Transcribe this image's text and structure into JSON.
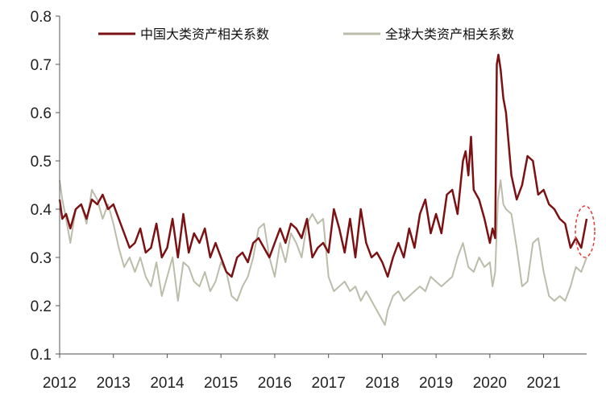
{
  "chart_data": {
    "type": "line",
    "xlabel": "",
    "ylabel": "",
    "xlim": [
      2012,
      2021.95
    ],
    "ylim": [
      0.1,
      0.8
    ],
    "y_ticks": [
      "0.1",
      "0.2",
      "0.3",
      "0.4",
      "0.5",
      "0.6",
      "0.7",
      "0.8"
    ],
    "x_ticks": [
      "2012",
      "2013",
      "2014",
      "2015",
      "2016",
      "2017",
      "2018",
      "2019",
      "2020",
      "2021"
    ],
    "grid": false,
    "legend_position": "top",
    "annotation": "dashed red ellipse marking latest values (2021 end)",
    "series": [
      {
        "name": "中国大类资产相关系数",
        "color": "#7b1113",
        "x": [
          2012.0,
          2012.05,
          2012.12,
          2012.2,
          2012.3,
          2012.4,
          2012.5,
          2012.6,
          2012.7,
          2012.8,
          2012.9,
          2013.0,
          2013.1,
          2013.2,
          2013.3,
          2013.4,
          2013.5,
          2013.6,
          2013.7,
          2013.8,
          2013.9,
          2014.0,
          2014.1,
          2014.2,
          2014.3,
          2014.4,
          2014.5,
          2014.6,
          2014.7,
          2014.8,
          2014.9,
          2015.0,
          2015.1,
          2015.2,
          2015.3,
          2015.4,
          2015.5,
          2015.6,
          2015.7,
          2015.8,
          2015.9,
          2016.0,
          2016.1,
          2016.2,
          2016.3,
          2016.4,
          2016.5,
          2016.6,
          2016.7,
          2016.8,
          2016.9,
          2017.0,
          2017.1,
          2017.2,
          2017.3,
          2017.4,
          2017.5,
          2017.6,
          2017.7,
          2017.8,
          2017.9,
          2018.0,
          2018.1,
          2018.2,
          2018.3,
          2018.4,
          2018.5,
          2018.6,
          2018.7,
          2018.8,
          2018.9,
          2019.0,
          2019.1,
          2019.2,
          2019.3,
          2019.4,
          2019.5,
          2019.55,
          2019.6,
          2019.65,
          2019.7,
          2019.8,
          2019.9,
          2020.0,
          2020.05,
          2020.1,
          2020.13,
          2020.16,
          2020.2,
          2020.25,
          2020.3,
          2020.4,
          2020.5,
          2020.6,
          2020.7,
          2020.8,
          2020.9,
          2021.0,
          2021.1,
          2021.2,
          2021.3,
          2021.4,
          2021.5,
          2021.6,
          2021.7,
          2021.8
        ],
        "values": [
          0.42,
          0.38,
          0.39,
          0.36,
          0.4,
          0.41,
          0.38,
          0.42,
          0.41,
          0.43,
          0.4,
          0.41,
          0.38,
          0.35,
          0.32,
          0.33,
          0.36,
          0.31,
          0.32,
          0.37,
          0.3,
          0.32,
          0.38,
          0.3,
          0.39,
          0.31,
          0.35,
          0.33,
          0.36,
          0.3,
          0.33,
          0.3,
          0.27,
          0.26,
          0.3,
          0.31,
          0.29,
          0.33,
          0.34,
          0.32,
          0.3,
          0.33,
          0.36,
          0.33,
          0.37,
          0.36,
          0.34,
          0.38,
          0.3,
          0.32,
          0.33,
          0.31,
          0.4,
          0.36,
          0.31,
          0.38,
          0.3,
          0.4,
          0.33,
          0.3,
          0.31,
          0.29,
          0.26,
          0.3,
          0.33,
          0.3,
          0.36,
          0.32,
          0.39,
          0.42,
          0.35,
          0.39,
          0.35,
          0.43,
          0.44,
          0.39,
          0.5,
          0.52,
          0.47,
          0.55,
          0.44,
          0.42,
          0.38,
          0.33,
          0.36,
          0.34,
          0.7,
          0.72,
          0.69,
          0.63,
          0.6,
          0.47,
          0.42,
          0.45,
          0.51,
          0.5,
          0.43,
          0.44,
          0.41,
          0.4,
          0.38,
          0.37,
          0.32,
          0.34,
          0.32,
          0.38
        ]
      },
      {
        "name": "全球大类资产相关系数",
        "color": "#bcbcaa",
        "x": [
          2012.0,
          2012.05,
          2012.12,
          2012.2,
          2012.3,
          2012.4,
          2012.5,
          2012.6,
          2012.7,
          2012.8,
          2012.9,
          2013.0,
          2013.1,
          2013.2,
          2013.3,
          2013.4,
          2013.5,
          2013.6,
          2013.7,
          2013.8,
          2013.9,
          2014.0,
          2014.1,
          2014.2,
          2014.3,
          2014.4,
          2014.5,
          2014.6,
          2014.7,
          2014.8,
          2014.9,
          2015.0,
          2015.1,
          2015.2,
          2015.3,
          2015.4,
          2015.5,
          2015.6,
          2015.7,
          2015.8,
          2015.9,
          2016.0,
          2016.1,
          2016.2,
          2016.3,
          2016.4,
          2016.5,
          2016.6,
          2016.7,
          2016.8,
          2016.9,
          2017.0,
          2017.1,
          2017.2,
          2017.3,
          2017.4,
          2017.5,
          2017.6,
          2017.7,
          2017.8,
          2017.9,
          2018.0,
          2018.05,
          2018.1,
          2018.2,
          2018.3,
          2018.4,
          2018.5,
          2018.6,
          2018.7,
          2018.8,
          2018.9,
          2019.0,
          2019.1,
          2019.2,
          2019.3,
          2019.4,
          2019.5,
          2019.6,
          2019.7,
          2019.8,
          2019.9,
          2020.0,
          2020.05,
          2020.1,
          2020.15,
          2020.2,
          2020.25,
          2020.3,
          2020.4,
          2020.5,
          2020.6,
          2020.7,
          2020.8,
          2020.9,
          2021.0,
          2021.1,
          2021.2,
          2021.3,
          2021.4,
          2021.5,
          2021.6,
          2021.7,
          2021.8
        ],
        "values": [
          0.46,
          0.42,
          0.38,
          0.33,
          0.4,
          0.41,
          0.37,
          0.44,
          0.42,
          0.38,
          0.41,
          0.37,
          0.32,
          0.28,
          0.3,
          0.27,
          0.3,
          0.26,
          0.24,
          0.29,
          0.22,
          0.26,
          0.3,
          0.21,
          0.29,
          0.28,
          0.25,
          0.24,
          0.27,
          0.23,
          0.25,
          0.29,
          0.27,
          0.22,
          0.21,
          0.24,
          0.26,
          0.3,
          0.36,
          0.37,
          0.3,
          0.26,
          0.33,
          0.29,
          0.35,
          0.33,
          0.3,
          0.37,
          0.39,
          0.37,
          0.38,
          0.26,
          0.23,
          0.24,
          0.25,
          0.23,
          0.24,
          0.21,
          0.23,
          0.21,
          0.19,
          0.17,
          0.16,
          0.19,
          0.22,
          0.23,
          0.21,
          0.22,
          0.23,
          0.24,
          0.23,
          0.26,
          0.25,
          0.24,
          0.25,
          0.26,
          0.3,
          0.33,
          0.28,
          0.27,
          0.3,
          0.28,
          0.29,
          0.24,
          0.27,
          0.42,
          0.46,
          0.41,
          0.4,
          0.39,
          0.32,
          0.24,
          0.25,
          0.33,
          0.34,
          0.27,
          0.22,
          0.21,
          0.22,
          0.21,
          0.24,
          0.28,
          0.27,
          0.3
        ]
      }
    ]
  }
}
